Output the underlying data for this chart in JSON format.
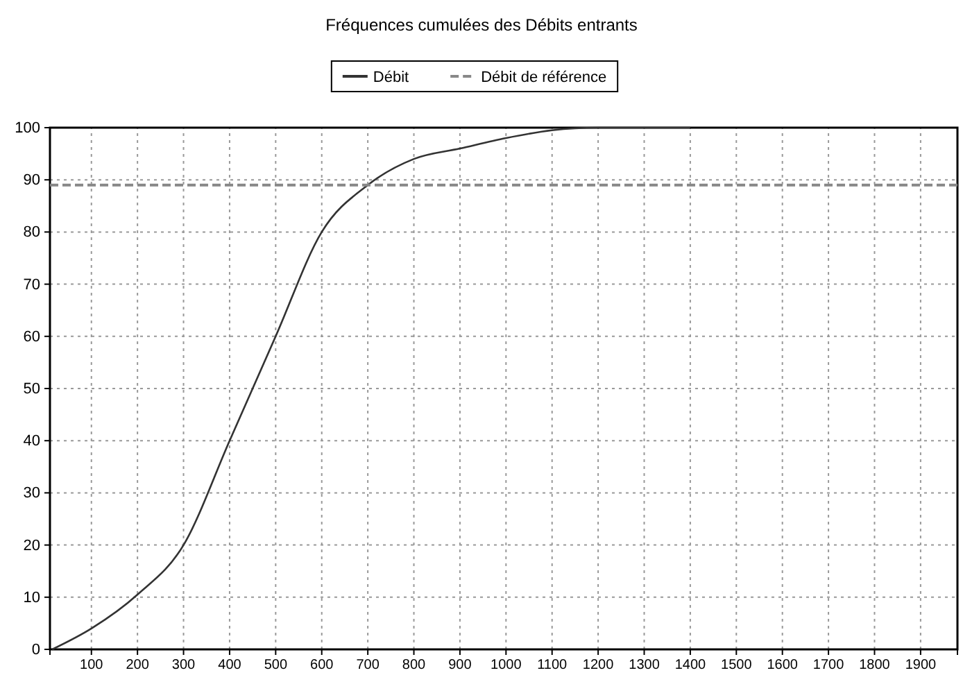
{
  "chart_data": {
    "type": "line",
    "title": "Fréquences cumulées des Débits entrants",
    "xlim": [
      10,
      1980
    ],
    "xticks": [
      100,
      200,
      300,
      400,
      500,
      600,
      700,
      800,
      900,
      1000,
      1100,
      1200,
      1300,
      1400,
      1500,
      1600,
      1700,
      1800,
      1900
    ],
    "ylim": [
      0,
      100
    ],
    "yticks": [
      0,
      10,
      20,
      30,
      40,
      50,
      60,
      70,
      80,
      90,
      100
    ],
    "grid": true,
    "legend": "top",
    "marker": "none",
    "series": [
      {
        "name": "Débit",
        "color": "#333333",
        "line_style": "solid",
        "x": [
          15,
          100,
          200,
          300,
          400,
          500,
          600,
          700,
          800,
          900,
          1000,
          1100,
          1200,
          1300,
          1400
        ],
        "values": [
          0,
          4,
          10.5,
          20,
          40,
          60,
          80,
          89,
          94,
          96,
          98,
          99.5,
          100,
          100,
          100
        ]
      },
      {
        "name": "Débit de référence",
        "color": "#888888",
        "line_style": "dashed",
        "x": [
          10,
          1980
        ],
        "values": [
          89,
          89
        ]
      }
    ]
  }
}
